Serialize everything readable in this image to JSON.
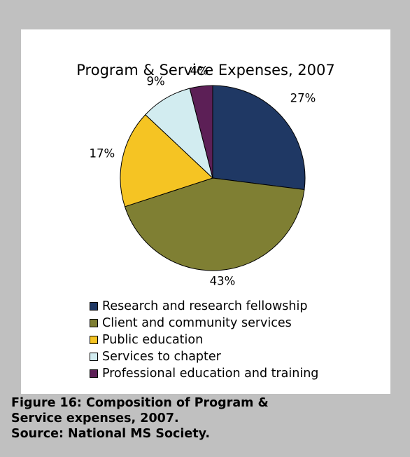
{
  "chart_data": {
    "type": "pie",
    "title": "Program & Service Expenses, 2007",
    "categories": [
      "Research and research fellowship",
      "Client and community services",
      "Public education",
      "Services to chapter",
      "Professional education and training"
    ],
    "values": [
      27,
      43,
      17,
      9,
      4
    ],
    "labels": [
      "27%",
      "43%",
      "17%",
      "9%",
      "4%"
    ],
    "colors": [
      "#1f3864",
      "#7f7f33",
      "#f5c423",
      "#d2ecf0",
      "#5c1f56"
    ],
    "legend_position": "bottom"
  },
  "caption": {
    "line1": "Figure 16: Composition of Program &",
    "line2": "Service expenses, 2007.",
    "line3": "Source: National MS Society."
  }
}
